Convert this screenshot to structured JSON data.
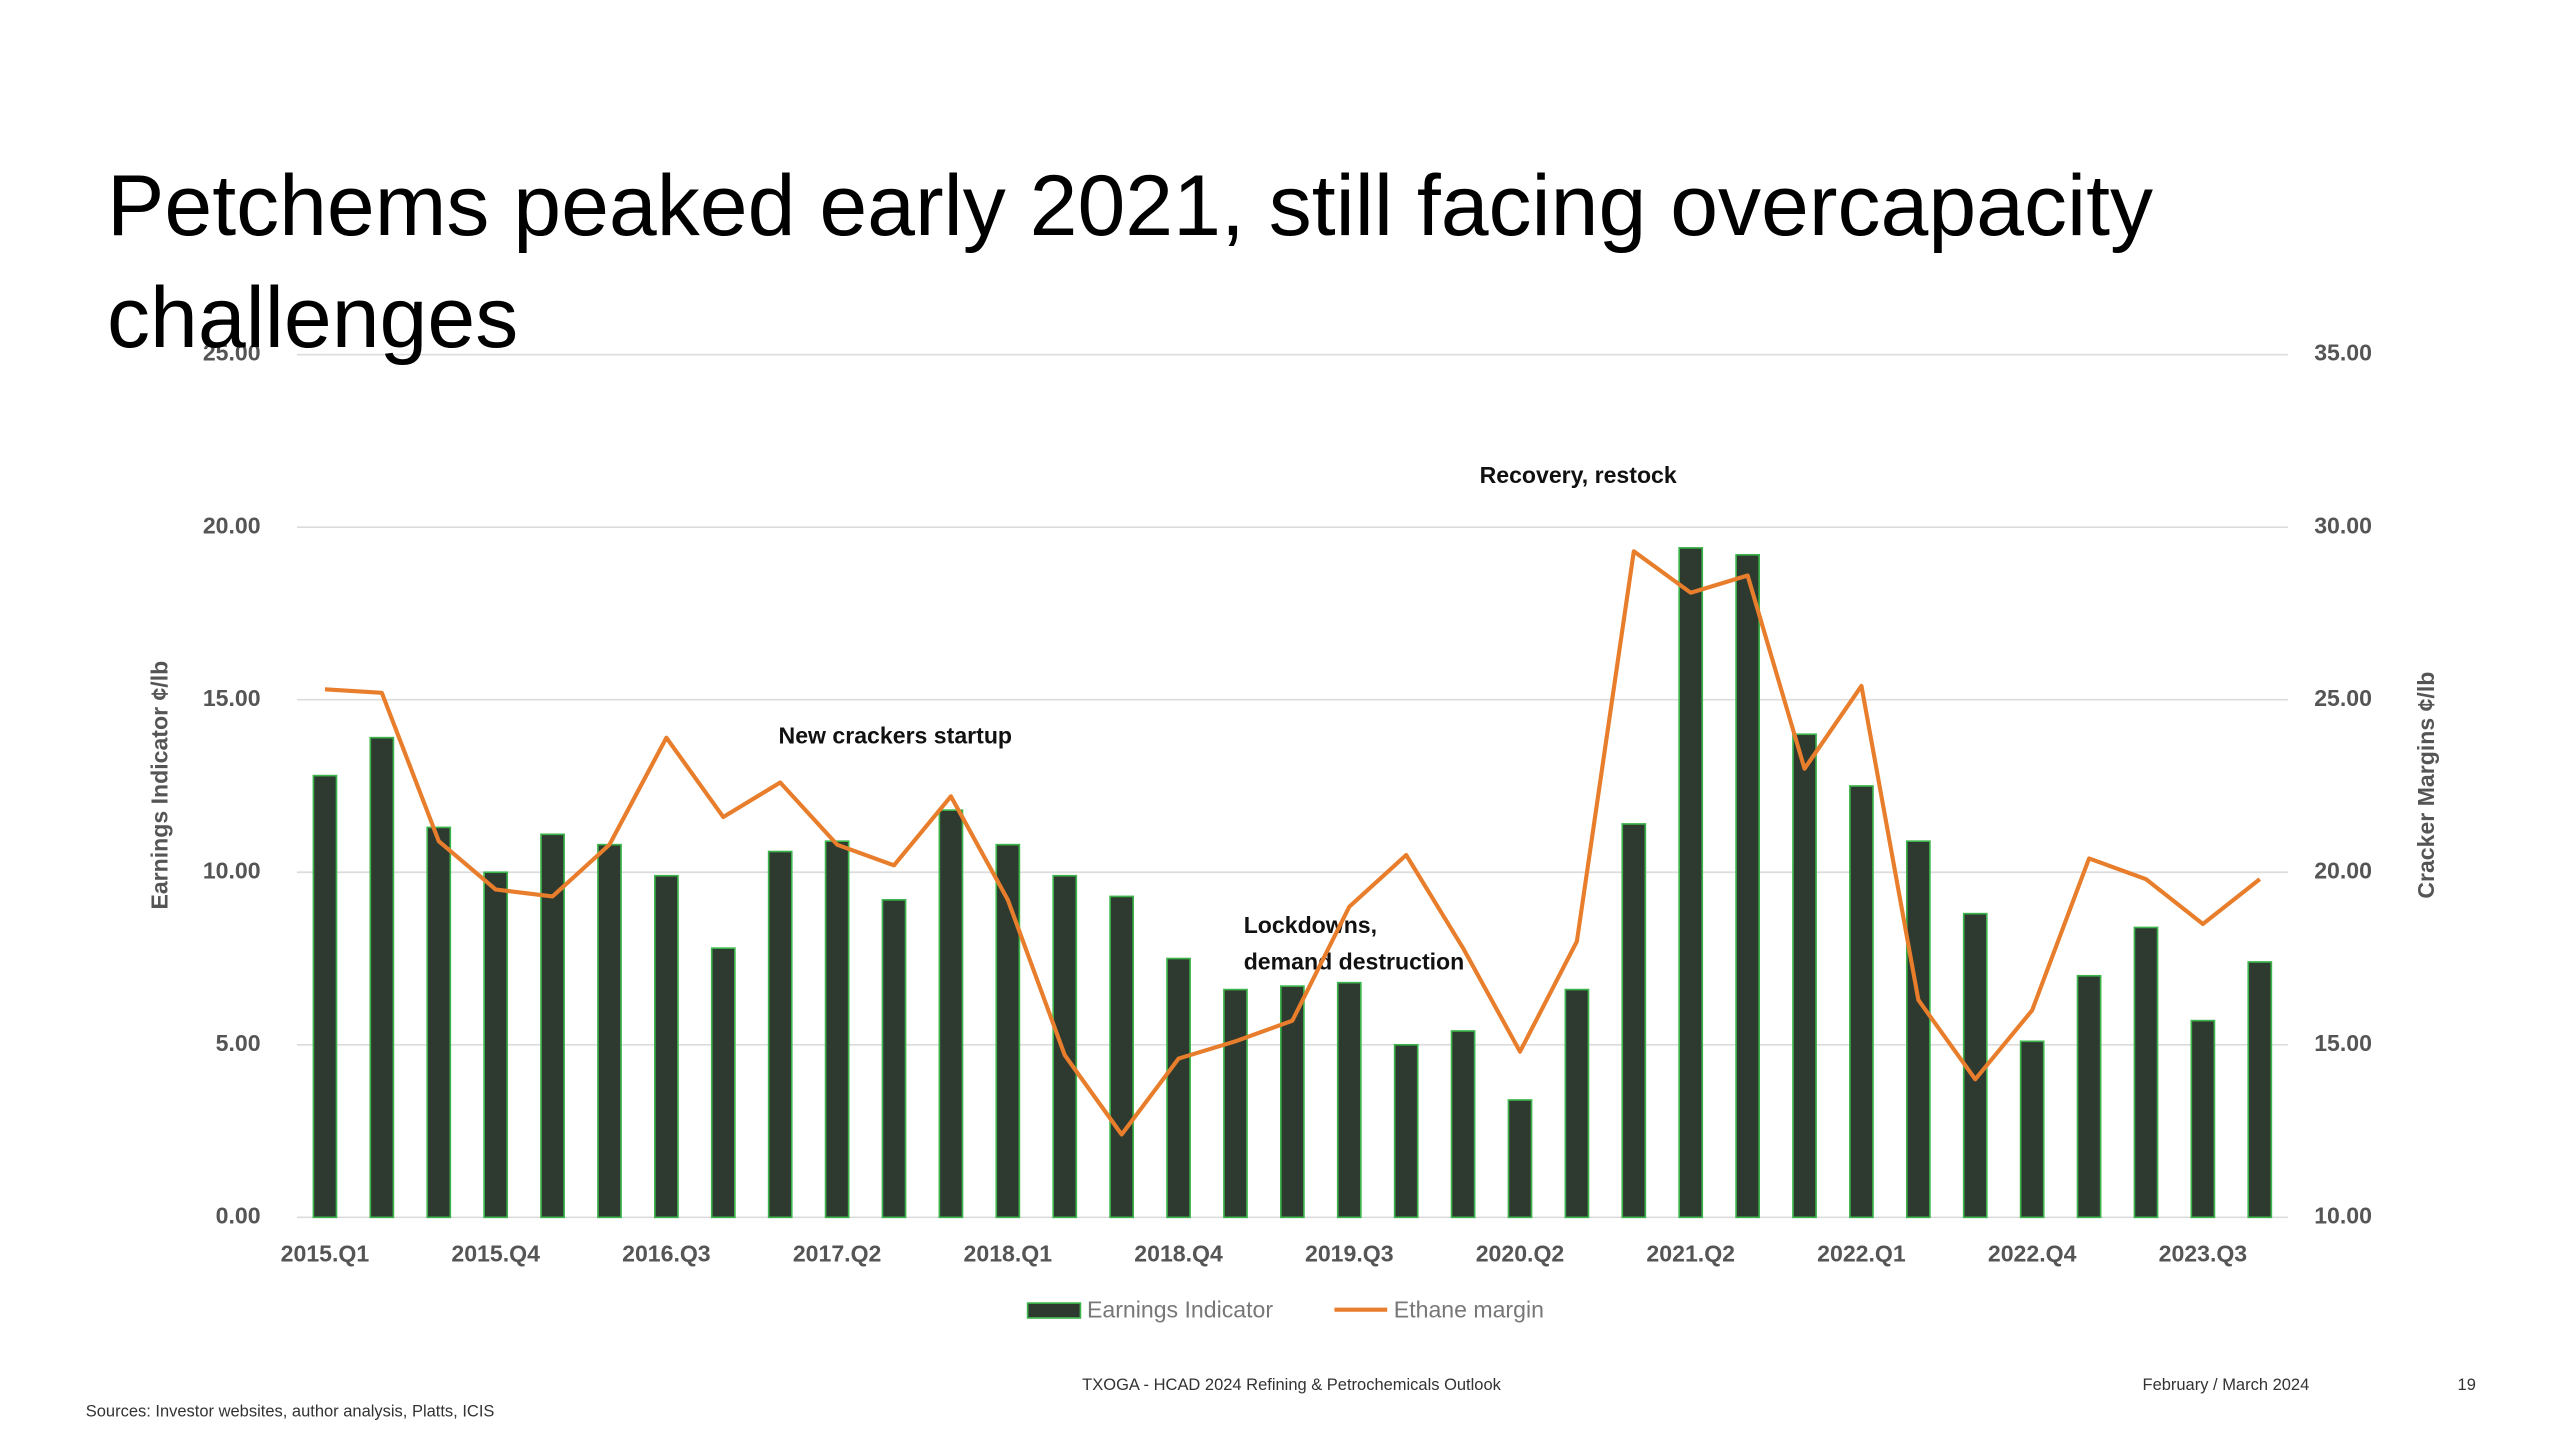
{
  "chart_data": {
    "type": "bar_line",
    "title": "Petchems peaked early 2021, still facing overcapacity challenges",
    "y_label": "Earnings Indicator ¢/lb",
    "y2_label": "Cracker Margins ¢/lb",
    "categories": [
      "2015.Q1",
      null,
      null,
      "2015.Q4",
      null,
      null,
      "2016.Q3",
      null,
      null,
      "2017.Q2",
      null,
      null,
      "2018.Q1",
      null,
      null,
      "2018.Q4",
      null,
      null,
      "2019.Q3",
      null,
      null,
      "2020.Q2",
      null,
      null,
      "2021.Q2",
      null,
      null,
      "2022.Q1",
      null,
      null,
      "2022.Q4",
      null,
      null,
      "2023.Q3",
      null
    ],
    "series": [
      {
        "name": "Earnings Indicator",
        "color": "#2e3a30",
        "edge_color": "#3cb44b",
        "kind": "bar",
        "values": [
          12.8,
          13.9,
          11.3,
          10.0,
          11.1,
          10.8,
          9.9,
          7.8,
          10.6,
          10.9,
          9.2,
          11.8,
          10.8,
          9.9,
          9.3,
          7.5,
          6.6,
          6.7,
          6.8,
          5.0,
          5.4,
          3.4,
          6.6,
          11.4,
          19.4,
          19.2,
          14.0,
          12.5,
          10.9,
          8.8,
          5.1,
          7.0,
          8.4,
          5.7,
          7.4
        ]
      },
      {
        "name": "Ethane margin",
        "color": "#e87d2c",
        "kind": "line",
        "axis": "y2",
        "values": [
          25.3,
          25.2,
          20.9,
          19.5,
          19.3,
          20.8,
          23.9,
          21.6,
          22.6,
          20.8,
          20.2,
          22.2,
          19.2,
          14.7,
          12.4,
          14.6,
          15.1,
          15.7,
          19.0,
          20.5,
          17.8,
          14.8,
          18.0,
          29.3,
          28.1,
          28.6,
          23.0,
          25.4,
          16.3,
          14.0,
          16.0,
          20.4,
          19.8,
          18.5,
          19.8
        ]
      }
    ],
    "ylim": [
      0,
      25
    ],
    "yticks": [
      {
        "value": 0,
        "label": "0.00"
      },
      {
        "value": 5,
        "label": "5.00"
      },
      {
        "value": 10,
        "label": "10.00"
      },
      {
        "value": 15,
        "label": "15.00"
      },
      {
        "value": 20,
        "label": "20.00"
      },
      {
        "value": 25,
        "label": "25.00"
      }
    ],
    "y2lim": [
      10,
      35
    ],
    "y2ticks": [
      {
        "value": 10,
        "label": "10.00"
      },
      {
        "value": 15,
        "label": "15.00"
      },
      {
        "value": 20,
        "label": "20.00"
      },
      {
        "value": 25,
        "label": "25.00"
      },
      {
        "value": 30,
        "label": "30.00"
      },
      {
        "value": 35,
        "label": "35.00"
      }
    ],
    "grid": true,
    "legend": "bottom",
    "annotations": [
      "New crackers startup",
      "Lockdowns,",
      "demand destruction",
      "Recovery, restock"
    ]
  },
  "footer": {
    "source": "Sources: Investor websites, author analysis, Platts, ICIS",
    "event": "TXOGA - HCAD 2024 Refining & Petrochemicals Outlook",
    "date": "February / March 2024",
    "page": "19"
  }
}
